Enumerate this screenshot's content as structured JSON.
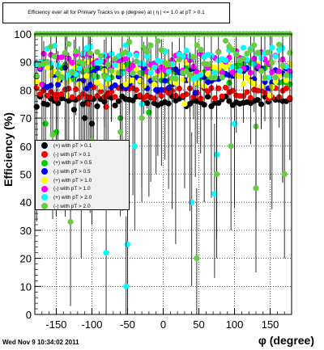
{
  "chart_data": {
    "type": "scatter",
    "title": "Efficiency over all for Primary Tracks vs φ (degree) at | η | <= 1.0 at pT > 0.1",
    "xlabel": "φ (degree)",
    "ylabel": "Efficiency (%)",
    "xlim": [
      -180,
      180
    ],
    "ylim": [
      0,
      100
    ],
    "xticks": [
      "-150",
      "-100",
      "-50",
      "0",
      "50",
      "100",
      "150"
    ],
    "xtick_values": [
      -150,
      -100,
      -50,
      0,
      50,
      100,
      150
    ],
    "yticks": [
      "0",
      "10",
      "20",
      "30",
      "40",
      "50",
      "60",
      "70",
      "80",
      "90",
      "100"
    ],
    "ytick_values": [
      0,
      10,
      20,
      30,
      40,
      50,
      60,
      70,
      80,
      90,
      100
    ],
    "grid": true,
    "legend_position": "middle-left",
    "series": [
      {
        "name": "(+) with pT > 0.1",
        "color": "#000000",
        "base": 76,
        "spread": 2,
        "outliers": [
          [
            -125,
            73
          ],
          [
            -110,
            70
          ],
          [
            -100,
            68
          ]
        ]
      },
      {
        "name": "(-) with pT > 0.1",
        "color": "#ff0000",
        "base": 79,
        "spread": 2,
        "outliers": [
          [
            -150,
            77
          ],
          [
            -105,
            75
          ],
          [
            -80,
            74
          ]
        ]
      },
      {
        "name": "(+) with pT > 0.5",
        "color": "#00cc00",
        "base": 86,
        "spread": 4,
        "outliers": [
          [
            -165,
            68
          ],
          [
            -150,
            65
          ],
          [
            -60,
            70
          ],
          [
            -20,
            72
          ]
        ]
      },
      {
        "name": "(-) with pT > 0.5",
        "color": "#0000ff",
        "base": 84,
        "spread": 4,
        "outliers": [
          [
            -10,
            80
          ],
          [
            45,
            79
          ]
        ]
      },
      {
        "name": "(+) with pT > 1.0",
        "color": "#ffff00",
        "base": 86,
        "spread": 5,
        "outliers": [
          [
            -135,
            78
          ],
          [
            30,
            75
          ],
          [
            150,
            78
          ]
        ]
      },
      {
        "name": "(-) with pT > 1.0",
        "color": "#ff00ff",
        "base": 90,
        "spread": 4,
        "outliers": [
          [
            -170,
            82
          ]
        ]
      },
      {
        "name": "(+) with pT > 2.0",
        "color": "#00ffff",
        "base": 90,
        "spread": 6,
        "outliers": [
          [
            -80,
            22
          ],
          [
            -50,
            25
          ],
          [
            -52,
            10
          ],
          [
            -40,
            60
          ],
          [
            40,
            40
          ],
          [
            75,
            57
          ],
          [
            72,
            43
          ],
          [
            -30,
            75
          ],
          [
            100,
            68
          ]
        ]
      },
      {
        "name": "(-) with pT > 2.0",
        "color": "#66cc44",
        "base": 91,
        "spread": 7,
        "outliers": [
          [
            -130,
            33
          ],
          [
            -115,
            50
          ],
          [
            -100,
            62
          ],
          [
            -155,
            64
          ],
          [
            -60,
            65
          ],
          [
            -30,
            70
          ],
          [
            47,
            20
          ],
          [
            75,
            50
          ],
          [
            95,
            60
          ],
          [
            130,
            67
          ],
          [
            170,
            50
          ],
          [
            130,
            45
          ]
        ]
      }
    ],
    "top_row_color": "#66cc44",
    "top_row_value": 100
  },
  "timestamp": "Wed Nov  9 10:34:02 2011"
}
